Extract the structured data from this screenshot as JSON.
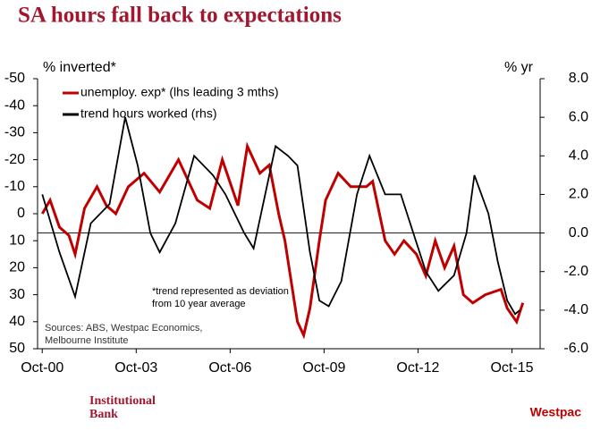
{
  "chart_data": {
    "type": "line",
    "title": "SA hours fall back to expectations",
    "y_label": "% inverted*",
    "y2_label": "% yr",
    "xlim": [
      2000.6,
      2016.65
    ],
    "xticks": [
      {
        "value": 2000.75,
        "label": "Oct-00"
      },
      {
        "value": 2003.75,
        "label": "Oct-03"
      },
      {
        "value": 2006.75,
        "label": "Oct-06"
      },
      {
        "value": 2009.75,
        "label": "Oct-09"
      },
      {
        "value": 2012.75,
        "label": "Oct-12"
      },
      {
        "value": 2015.75,
        "label": "Oct-15"
      }
    ],
    "ylim": [
      50,
      -50
    ],
    "yticks": [
      -50,
      -40,
      -30,
      -20,
      -10,
      0,
      10,
      20,
      30,
      40,
      50
    ],
    "y2lim": [
      -6,
      8
    ],
    "y2ticks": [
      {
        "value": 8,
        "label": "8.0"
      },
      {
        "value": 6,
        "label": "6.0"
      },
      {
        "value": 4,
        "label": "4.0"
      },
      {
        "value": 2,
        "label": "2.0"
      },
      {
        "value": 0,
        "label": "0.0"
      },
      {
        "value": -2,
        "label": "-2.0"
      },
      {
        "value": -4,
        "label": "-4.0"
      },
      {
        "value": -6,
        "label": "-6.0"
      }
    ],
    "series": [
      {
        "name": "unemploy. exp* (lhs leading 3 mths)",
        "color": "#c00000",
        "x": [
          2000.75,
          2001.0,
          2001.3,
          2001.6,
          2001.8,
          2002.1,
          2002.5,
          2002.8,
          2003.1,
          2003.5,
          2004.0,
          2004.5,
          2005.1,
          2005.7,
          2006.1,
          2006.5,
          2007.0,
          2007.3,
          2007.7,
          2008.0,
          2008.3,
          2008.5,
          2008.9,
          2009.1,
          2009.3,
          2009.6,
          2009.8,
          2010.2,
          2010.6,
          2011.1,
          2011.3,
          2011.7,
          2012.0,
          2012.3,
          2012.7,
          2013.0,
          2013.3,
          2013.6,
          2013.9,
          2014.2,
          2014.5,
          2014.9,
          2015.4,
          2015.6,
          2015.9,
          2016.1
        ],
        "values": [
          0,
          -5,
          5,
          8,
          15,
          -2,
          -10,
          -3,
          0,
          -10,
          -15,
          -8,
          -20,
          -5,
          -2,
          -20,
          -3,
          -25,
          -15,
          -18,
          0,
          10,
          40,
          45,
          35,
          10,
          -5,
          -15,
          -10,
          -10,
          -12,
          10,
          15,
          10,
          15,
          23,
          10,
          20,
          12,
          30,
          33,
          30,
          28,
          35,
          40,
          33
        ]
      },
      {
        "name": "trend hours worked (rhs)",
        "color": "#000000",
        "axis": "y2",
        "x": [
          2000.75,
          2001.3,
          2001.8,
          2002.3,
          2002.9,
          2003.4,
          2003.8,
          2004.2,
          2004.5,
          2005.0,
          2005.6,
          2006.2,
          2006.6,
          2007.2,
          2007.5,
          2008.2,
          2008.6,
          2008.9,
          2009.3,
          2009.6,
          2009.9,
          2010.3,
          2010.8,
          2011.2,
          2011.7,
          2012.2,
          2012.6,
          2013.0,
          2013.4,
          2013.9,
          2014.3,
          2014.55,
          2015.0,
          2015.3,
          2015.6,
          2015.85,
          2016.0
        ],
        "values": [
          2.0,
          -1.0,
          -3.3,
          0.5,
          1.5,
          6.0,
          3.5,
          0.0,
          -1.0,
          0.5,
          4.0,
          3.0,
          2.0,
          0.0,
          -0.8,
          4.5,
          4.0,
          3.5,
          -1.0,
          -3.5,
          -3.8,
          -2.5,
          2.0,
          4.0,
          2.0,
          2.0,
          0.0,
          -2.0,
          -3.0,
          -2.2,
          0.0,
          3.0,
          1.0,
          -1.5,
          -3.5,
          -4.2,
          -4.0
        ]
      }
    ],
    "annotations": [
      "*trend represented as deviation",
      "from 10 year average"
    ],
    "sources": [
      "Sources: ABS, Westpac Economics,",
      "Melbourne Institute"
    ],
    "footer_left": [
      "Institutional",
      "Bank"
    ],
    "footer_right": "Westpac"
  }
}
